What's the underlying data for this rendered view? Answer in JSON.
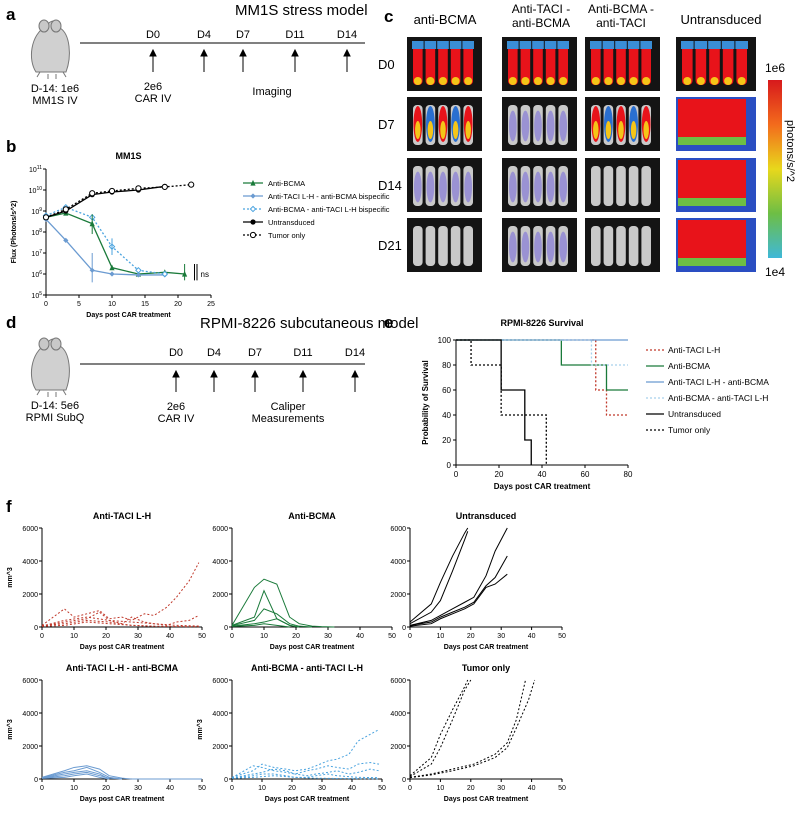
{
  "panels": {
    "a": {
      "letter": "a",
      "title": "MM1S stress model",
      "mouse_label": [
        "D-14: 1e6",
        "MM1S IV"
      ],
      "days": [
        "D0",
        "D4",
        "D7",
        "D11",
        "D14"
      ],
      "car_label": [
        "2e6",
        "CAR IV"
      ],
      "imaging_label": "Imaging"
    },
    "c": {
      "letter": "c",
      "columns": [
        "anti-BCMA",
        "Anti-TACI - anti-BCMA",
        "Anti-BCMA - anti-TACI",
        "Untransduced"
      ],
      "rows": [
        "D0",
        "D7",
        "D14",
        "D21"
      ],
      "colorbar": {
        "max": "1e6",
        "min": "1e4",
        "unit": "photons/s/^2"
      }
    },
    "d": {
      "letter": "d",
      "title": "RPMI-8226 subcutaneous model",
      "mouse_label": [
        "D-14: 5e6",
        "RPMI SubQ"
      ],
      "days": [
        "D0",
        "D4",
        "D7",
        "D11",
        "D14"
      ],
      "car_label": [
        "2e6",
        "CAR IV"
      ],
      "measure_label": [
        "Caliper",
        "Measurements"
      ]
    },
    "f": {
      "letter": "f"
    }
  },
  "colors": {
    "anti_bcma": "#1a7a3a",
    "taci_bcma": "#6b9bd1",
    "bcma_taci": "#4aa3df",
    "untransduced": "#000000",
    "anti_taci": "#c0392b",
    "tumor_only": "#000000"
  },
  "chart_data": [
    {
      "id": "b",
      "letter": "b",
      "type": "line",
      "title": "MM1S",
      "xlabel": "Days post CAR treatment",
      "ylabel": "Flux (Photons/s^2)",
      "xlim": [
        0,
        25
      ],
      "ylim": [
        100000,
        100000000000
      ],
      "yscale": "log",
      "xticks": [
        0,
        5,
        10,
        15,
        20,
        25
      ],
      "yticks": [
        "10^5",
        "10^6",
        "10^7",
        "10^8",
        "10^9",
        "10^10",
        "10^11"
      ],
      "annotation": "ns",
      "legend_position": "right",
      "series": [
        {
          "name": "Anti-BCMA",
          "color": "#1a7a3a",
          "style": "solid",
          "marker": "triangle",
          "x": [
            0,
            3,
            7,
            10,
            14,
            18,
            21
          ],
          "y": [
            500000000,
            800000000,
            250000000,
            2000000,
            1000000,
            1200000,
            1000000
          ]
        },
        {
          "name": "Anti-TACI L-H - anti-BCMA bispecific",
          "color": "#6b9bd1",
          "style": "solid",
          "marker": "diamond",
          "x": [
            0,
            3,
            7,
            10,
            14,
            18
          ],
          "y": [
            400000000,
            40000000,
            1500000,
            1000000,
            900000,
            900000
          ]
        },
        {
          "name": "Anti-BCMA - anti-TACI L-H bispecific",
          "color": "#4aa3df",
          "style": "dotted",
          "marker": "diamond-open",
          "x": [
            0,
            3,
            7,
            10,
            14,
            18
          ],
          "y": [
            600000000,
            1500000000,
            500000000,
            20000000,
            1500000,
            1000000
          ]
        },
        {
          "name": "Untransduced",
          "color": "#000000",
          "style": "solid",
          "marker": "circle",
          "x": [
            0,
            3,
            7,
            10,
            14,
            18
          ],
          "y": [
            500000000,
            1000000000,
            6000000000,
            8000000000,
            10000000000,
            15000000000
          ]
        },
        {
          "name": "Tumor only",
          "color": "#000000",
          "style": "dotted",
          "marker": "circle-open",
          "x": [
            0,
            3,
            7,
            10,
            14,
            18,
            22
          ],
          "y": [
            500000000,
            1200000000,
            7000000000,
            9000000000,
            12000000000,
            14000000000,
            18000000000
          ]
        }
      ]
    },
    {
      "id": "e",
      "letter": "e",
      "type": "line",
      "title": "RPMI-8226 Survival",
      "xlabel": "Days post CAR treatment",
      "ylabel": "Probability of Survival",
      "xlim": [
        0,
        80
      ],
      "ylim": [
        0,
        100
      ],
      "xticks": [
        0,
        20,
        40,
        60,
        80
      ],
      "yticks": [
        0,
        20,
        40,
        60,
        80,
        100
      ],
      "legend_position": "right",
      "series": [
        {
          "name": "Anti-TACI L-H",
          "color": "#c0392b",
          "style": "dotted",
          "x": [
            0,
            65,
            70,
            80
          ],
          "y": [
            100,
            60,
            40,
            40
          ]
        },
        {
          "name": "Anti-BCMA",
          "color": "#1a7a3a",
          "style": "solid",
          "x": [
            0,
            49,
            70,
            80
          ],
          "y": [
            100,
            80,
            60,
            60
          ]
        },
        {
          "name": "Anti-TACI L-H - anti-BCMA",
          "color": "#6b9bd1",
          "style": "solid",
          "x": [
            0,
            80
          ],
          "y": [
            100,
            100
          ]
        },
        {
          "name": "Anti-BCMA - anti-TACI L-H",
          "color": "#a6d0ec",
          "style": "dotted",
          "x": [
            0,
            63,
            80
          ],
          "y": [
            100,
            80,
            80
          ]
        },
        {
          "name": "Untransduced",
          "color": "#000000",
          "style": "solid",
          "x": [
            0,
            21,
            32,
            35
          ],
          "y": [
            100,
            60,
            20,
            0
          ]
        },
        {
          "name": "Tumor only",
          "color": "#000000",
          "style": "dotted",
          "x": [
            0,
            7,
            21,
            42
          ],
          "y": [
            100,
            80,
            40,
            0
          ]
        }
      ]
    },
    {
      "id": "f1",
      "type": "line",
      "title": "Anti-TACI L-H",
      "xlabel": "Days post CAR treatment",
      "ylabel": "mm^3",
      "xlim": [
        0,
        50
      ],
      "ylim": [
        0,
        6000
      ],
      "xticks": [
        0,
        10,
        20,
        30,
        40,
        50
      ],
      "yticks": [
        0,
        2000,
        4000,
        6000
      ],
      "color": "#c0392b",
      "style": "dotted",
      "series": [
        {
          "x": [
            0,
            7,
            10,
            14,
            18,
            21,
            25,
            28,
            32,
            35,
            39,
            42,
            46,
            49
          ],
          "y": [
            100,
            1100,
            600,
            800,
            1000,
            500,
            600,
            400,
            800,
            700,
            1200,
            1800,
            2800,
            3900
          ]
        },
        {
          "x": [
            0,
            7,
            14,
            18,
            21,
            25,
            28,
            32,
            35,
            39,
            42,
            46,
            49
          ],
          "y": [
            50,
            300,
            500,
            900,
            400,
            200,
            600,
            300,
            200,
            100,
            300,
            400,
            700
          ]
        },
        {
          "x": [
            0,
            7,
            14,
            21,
            28,
            35,
            42,
            49
          ],
          "y": [
            80,
            200,
            400,
            300,
            100,
            50,
            30,
            20
          ]
        },
        {
          "x": [
            0,
            7,
            14,
            21,
            28,
            35,
            42,
            49
          ],
          "y": [
            60,
            400,
            600,
            400,
            300,
            200,
            100,
            60
          ]
        },
        {
          "x": [
            0,
            7,
            14,
            21,
            28,
            35
          ],
          "y": [
            40,
            100,
            300,
            200,
            100,
            50
          ]
        }
      ]
    },
    {
      "id": "f2",
      "type": "line",
      "title": "Anti-BCMA",
      "xlabel": "Days post CAR treatment",
      "ylabel": "",
      "xlim": [
        0,
        50
      ],
      "ylim": [
        0,
        6000
      ],
      "xticks": [
        0,
        10,
        20,
        30,
        40,
        50
      ],
      "yticks": [
        0,
        2000,
        4000,
        6000
      ],
      "color": "#1a7a3a",
      "style": "solid",
      "series": [
        {
          "x": [
            0,
            7,
            10,
            14,
            18,
            21,
            25,
            28,
            32
          ],
          "y": [
            100,
            2400,
            2900,
            2600,
            600,
            200,
            50,
            20,
            0
          ]
        },
        {
          "x": [
            0,
            7,
            10,
            14,
            18,
            21
          ],
          "y": [
            100,
            600,
            2200,
            500,
            100,
            0
          ]
        },
        {
          "x": [
            0,
            7,
            10,
            14,
            18,
            21,
            25
          ],
          "y": [
            80,
            400,
            1100,
            800,
            200,
            50,
            0
          ]
        },
        {
          "x": [
            0,
            7,
            10,
            14,
            18,
            21
          ],
          "y": [
            50,
            200,
            300,
            500,
            100,
            0
          ]
        },
        {
          "x": [
            0,
            7,
            10,
            14,
            18
          ],
          "y": [
            40,
            100,
            200,
            100,
            0
          ]
        }
      ]
    },
    {
      "id": "f3",
      "type": "line",
      "title": "Untransduced",
      "xlabel": "Days post CAR treatment",
      "ylabel": "",
      "xlim": [
        0,
        50
      ],
      "ylim": [
        0,
        6000
      ],
      "xticks": [
        0,
        10,
        20,
        30,
        40,
        50
      ],
      "yticks": [
        0,
        2000,
        4000,
        6000
      ],
      "color": "#000000",
      "style": "solid",
      "series": [
        {
          "x": [
            0,
            7,
            10,
            14,
            18,
            19
          ],
          "y": [
            300,
            1400,
            2700,
            4300,
            5700,
            6000
          ]
        },
        {
          "x": [
            0,
            7,
            10,
            14,
            18,
            19
          ],
          "y": [
            200,
            900,
            1600,
            3400,
            5300,
            5800
          ]
        },
        {
          "x": [
            0,
            7,
            10,
            14,
            18,
            21,
            25,
            28,
            32
          ],
          "y": [
            100,
            400,
            700,
            1100,
            1500,
            1800,
            3100,
            4600,
            6000
          ]
        },
        {
          "x": [
            0,
            7,
            10,
            14,
            18,
            21,
            25,
            28,
            32
          ],
          "y": [
            100,
            300,
            600,
            900,
            1200,
            1500,
            2500,
            3000,
            4300
          ]
        },
        {
          "x": [
            0,
            7,
            10,
            14,
            18,
            21,
            25,
            28,
            32
          ],
          "y": [
            50,
            200,
            500,
            800,
            1100,
            1400,
            2400,
            2600,
            3200
          ]
        }
      ]
    },
    {
      "id": "f4",
      "type": "line",
      "title": "Anti-TACI L-H - anti-BCMA",
      "xlabel": "Days post CAR treatment",
      "ylabel": "mm^3",
      "xlim": [
        0,
        50
      ],
      "ylim": [
        0,
        6000
      ],
      "xticks": [
        0,
        10,
        20,
        30,
        40,
        50
      ],
      "yticks": [
        0,
        2000,
        4000,
        6000
      ],
      "color": "#6b9bd1",
      "style": "solid",
      "series": [
        {
          "x": [
            0,
            7,
            10,
            14,
            18,
            21,
            25,
            28
          ],
          "y": [
            100,
            500,
            700,
            800,
            600,
            200,
            50,
            0
          ]
        },
        {
          "x": [
            0,
            7,
            10,
            14,
            18,
            21,
            25
          ],
          "y": [
            80,
            400,
            500,
            700,
            400,
            100,
            0
          ]
        },
        {
          "x": [
            0,
            7,
            10,
            14,
            18,
            21
          ],
          "y": [
            60,
            300,
            400,
            500,
            300,
            0
          ]
        },
        {
          "x": [
            0,
            7,
            10,
            14,
            18,
            21,
            25
          ],
          "y": [
            50,
            200,
            300,
            400,
            200,
            50,
            0
          ]
        },
        {
          "x": [
            0,
            7,
            10,
            14,
            18,
            21
          ],
          "y": [
            40,
            100,
            200,
            300,
            100,
            0
          ]
        },
        {
          "x": [
            28,
            50
          ],
          "y": [
            0,
            0
          ]
        }
      ]
    },
    {
      "id": "f5",
      "type": "line",
      "title": "Anti-BCMA - anti-TACI L-H",
      "xlabel": "Days post CAR treatment",
      "ylabel": "mm^3",
      "xlim": [
        0,
        50
      ],
      "ylim": [
        0,
        6000
      ],
      "xticks": [
        0,
        10,
        20,
        30,
        40,
        50
      ],
      "yticks": [
        0,
        2000,
        4000,
        6000
      ],
      "color": "#4aa3df",
      "style": "dotted",
      "series": [
        {
          "x": [
            0,
            7,
            10,
            14,
            18,
            21,
            25,
            28,
            32,
            35,
            39,
            42,
            46,
            49
          ],
          "y": [
            100,
            500,
            900,
            700,
            600,
            500,
            600,
            800,
            1100,
            1200,
            1500,
            2300,
            2700,
            3000
          ]
        },
        {
          "x": [
            0,
            7,
            10,
            14,
            18,
            21,
            25,
            28,
            32,
            35,
            39,
            42,
            46,
            49
          ],
          "y": [
            80,
            800,
            700,
            500,
            400,
            300,
            500,
            600,
            800,
            700,
            600,
            900,
            1000,
            900
          ]
        },
        {
          "x": [
            0,
            7,
            10,
            14,
            18,
            21,
            25,
            28,
            32,
            35,
            39,
            42,
            46,
            49
          ],
          "y": [
            60,
            300,
            400,
            600,
            500,
            300,
            200,
            300,
            400,
            500,
            300,
            400,
            600,
            500
          ]
        },
        {
          "x": [
            0,
            7,
            10,
            14,
            18,
            21,
            25,
            28,
            32,
            35,
            42,
            49
          ],
          "y": [
            50,
            200,
            300,
            300,
            200,
            100,
            100,
            200,
            300,
            200,
            100,
            80
          ]
        },
        {
          "x": [
            0,
            7,
            14,
            21,
            28,
            35,
            42,
            49
          ],
          "y": [
            40,
            100,
            200,
            100,
            50,
            30,
            20,
            10
          ]
        }
      ]
    },
    {
      "id": "f6",
      "type": "line",
      "title": "Tumor only",
      "xlabel": "Days post CAR treatment",
      "ylabel": "",
      "xlim": [
        0,
        50
      ],
      "ylim": [
        0,
        6000
      ],
      "xticks": [
        0,
        10,
        20,
        30,
        40,
        50
      ],
      "yticks": [
        0,
        2000,
        4000,
        6000
      ],
      "color": "#000000",
      "style": "dotted",
      "series": [
        {
          "x": [
            0,
            7,
            10,
            14,
            18,
            19
          ],
          "y": [
            200,
            1300,
            2700,
            4200,
            5600,
            6000
          ]
        },
        {
          "x": [
            0,
            7,
            10,
            14,
            18,
            20
          ],
          "y": [
            150,
            900,
            1900,
            3600,
            5400,
            6000
          ]
        },
        {
          "x": [
            0,
            7,
            14,
            21,
            28,
            32,
            35,
            38
          ],
          "y": [
            100,
            300,
            600,
            900,
            1500,
            2200,
            3600,
            6000
          ]
        },
        {
          "x": [
            0,
            7,
            14,
            21,
            28,
            32,
            35,
            39,
            41
          ],
          "y": [
            80,
            250,
            500,
            800,
            1300,
            1900,
            3100,
            4800,
            6000
          ]
        }
      ]
    }
  ]
}
